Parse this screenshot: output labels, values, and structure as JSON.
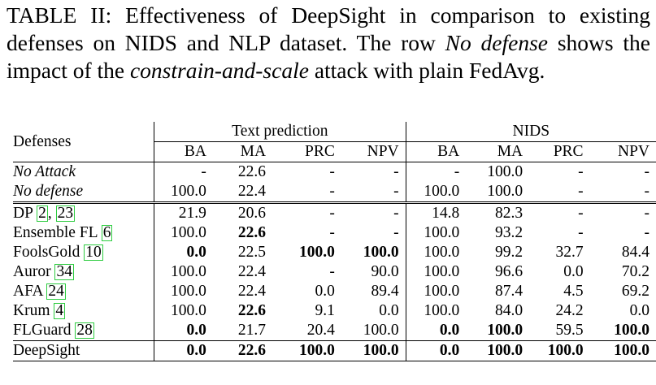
{
  "caption": {
    "label": "TABLE II:",
    "p1": " Effectiveness of DeepSight in comparison to existing defenses on NIDS and NLP dataset. The row ",
    "p2": "No defense",
    "p3": " shows the impact of the ",
    "p4": "constrain-and-scale",
    "p5": " attack with plain FedAvg."
  },
  "table": {
    "defenses_header": "Defenses",
    "group1": "Text prediction",
    "group2": "NIDS",
    "subheaders": [
      "BA",
      "MA",
      "PRC",
      "NPV",
      "BA",
      "MA",
      "PRC",
      "NPV"
    ],
    "rows": [
      {
        "name": "No Attack",
        "cites": [],
        "values": [
          "-",
          "22.6",
          "-",
          "-",
          "-",
          "100.0",
          "-",
          "-"
        ]
      },
      {
        "name": "No defense",
        "cites": [],
        "values": [
          "100.0",
          "22.4",
          "-",
          "-",
          "100.0",
          "100.0",
          "-",
          "-"
        ]
      },
      {
        "name": "DP",
        "cites": [
          "2",
          "23"
        ],
        "values": [
          "21.9",
          "20.6",
          "-",
          "-",
          "14.8",
          "82.3",
          "-",
          "-"
        ]
      },
      {
        "name": "Ensemble FL",
        "cites": [
          "6"
        ],
        "values": [
          "100.0",
          "22.6",
          "-",
          "-",
          "100.0",
          "93.2",
          "-",
          "-"
        ]
      },
      {
        "name": "FoolsGold",
        "cites": [
          "10"
        ],
        "values": [
          "0.0",
          "22.5",
          "100.0",
          "100.0",
          "100.0",
          "99.2",
          "32.7",
          "84.4"
        ]
      },
      {
        "name": "Auror",
        "cites": [
          "34"
        ],
        "values": [
          "100.0",
          "22.4",
          "-",
          "90.0",
          "100.0",
          "96.6",
          "0.0",
          "70.2"
        ]
      },
      {
        "name": "AFA",
        "cites": [
          "24"
        ],
        "values": [
          "100.0",
          "22.4",
          "0.0",
          "89.4",
          "100.0",
          "87.4",
          "4.5",
          "69.2"
        ]
      },
      {
        "name": "Krum",
        "cites": [
          "4"
        ],
        "values": [
          "100.0",
          "22.6",
          "9.1",
          "0.0",
          "100.0",
          "84.0",
          "24.2",
          "0.0"
        ]
      },
      {
        "name": "FLGuard",
        "cites": [
          "28"
        ],
        "values": [
          "0.0",
          "21.7",
          "20.4",
          "100.0",
          "0.0",
          "100.0",
          "59.5",
          "100.0"
        ]
      },
      {
        "name": "DeepSight",
        "cites": [],
        "values": [
          "0.0",
          "22.6",
          "100.0",
          "100.0",
          "0.0",
          "100.0",
          "100.0",
          "100.0"
        ]
      }
    ]
  }
}
